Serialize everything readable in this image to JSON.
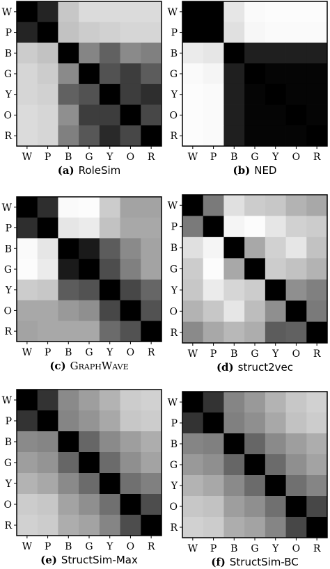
{
  "chart_data": [
    {
      "type": "heatmap",
      "caption_letter": "(a)",
      "caption_text": "RoleSim",
      "xlabels": [
        "W",
        "P",
        "B",
        "G",
        "Y",
        "O",
        "R"
      ],
      "ylabels": [
        "W",
        "P",
        "B",
        "G",
        "Y",
        "O",
        "R"
      ],
      "values": [
        [
          0.0,
          0.14,
          0.78,
          0.86,
          0.86,
          0.86,
          0.86
        ],
        [
          0.14,
          0.0,
          0.76,
          0.8,
          0.82,
          0.84,
          0.84
        ],
        [
          0.8,
          0.76,
          0.0,
          0.52,
          0.38,
          0.54,
          0.5
        ],
        [
          0.84,
          0.8,
          0.54,
          0.0,
          0.32,
          0.24,
          0.36
        ],
        [
          0.84,
          0.82,
          0.38,
          0.32,
          0.0,
          0.24,
          0.18
        ],
        [
          0.86,
          0.84,
          0.56,
          0.24,
          0.24,
          0.0,
          0.28
        ],
        [
          0.86,
          0.84,
          0.5,
          0.34,
          0.16,
          0.28,
          0.0
        ]
      ]
    },
    {
      "type": "heatmap",
      "caption_letter": "(b)",
      "caption_text": "NED",
      "xlabels": [
        "W",
        "P",
        "B",
        "G",
        "Y",
        "O",
        "R"
      ],
      "ylabels": [
        "W",
        "P",
        "B",
        "G",
        "Y",
        "O",
        "R"
      ],
      "values": [
        [
          0.0,
          0.0,
          0.9,
          0.98,
          0.99,
          0.99,
          0.99
        ],
        [
          0.0,
          0.0,
          0.88,
          0.97,
          0.98,
          0.98,
          0.98
        ],
        [
          0.92,
          0.9,
          0.0,
          0.12,
          0.12,
          0.12,
          0.12
        ],
        [
          0.98,
          0.96,
          0.12,
          0.0,
          0.02,
          0.02,
          0.02
        ],
        [
          0.99,
          0.98,
          0.12,
          0.02,
          0.0,
          0.02,
          0.02
        ],
        [
          0.99,
          0.98,
          0.12,
          0.02,
          0.02,
          0.0,
          0.02
        ],
        [
          0.99,
          0.98,
          0.12,
          0.02,
          0.02,
          0.02,
          0.0
        ]
      ]
    },
    {
      "type": "heatmap",
      "caption_letter": "(c)",
      "caption_text": "GraphWave",
      "xlabels": [
        "W",
        "P",
        "B",
        "G",
        "Y",
        "O",
        "R"
      ],
      "ylabels": [
        "W",
        "P",
        "B",
        "G",
        "Y",
        "O",
        "R"
      ],
      "values": [
        [
          0.0,
          0.18,
          0.98,
          0.99,
          0.8,
          0.64,
          0.64
        ],
        [
          0.18,
          0.0,
          0.9,
          0.92,
          0.76,
          0.66,
          0.66
        ],
        [
          0.98,
          0.9,
          0.0,
          0.1,
          0.36,
          0.54,
          0.64
        ],
        [
          0.99,
          0.92,
          0.1,
          0.0,
          0.3,
          0.5,
          0.64
        ],
        [
          0.8,
          0.78,
          0.36,
          0.32,
          0.0,
          0.28,
          0.4
        ],
        [
          0.66,
          0.66,
          0.6,
          0.56,
          0.28,
          0.0,
          0.32
        ],
        [
          0.64,
          0.66,
          0.66,
          0.66,
          0.42,
          0.32,
          0.0
        ]
      ]
    },
    {
      "type": "heatmap",
      "caption_letter": "(d)",
      "caption_text": "struct2vec",
      "xlabels": [
        "W",
        "P",
        "B",
        "G",
        "Y",
        "O",
        "R"
      ],
      "ylabels": [
        "W",
        "P",
        "B",
        "G",
        "Y",
        "O",
        "R"
      ],
      "values": [
        [
          0.0,
          0.48,
          0.88,
          0.8,
          0.78,
          0.7,
          0.66
        ],
        [
          0.48,
          0.0,
          0.96,
          0.99,
          0.9,
          0.82,
          0.8
        ],
        [
          0.88,
          0.96,
          0.0,
          0.66,
          0.82,
          0.9,
          0.76
        ],
        [
          0.8,
          0.99,
          0.66,
          0.0,
          0.8,
          0.76,
          0.7
        ],
        [
          0.78,
          0.92,
          0.84,
          0.8,
          0.0,
          0.56,
          0.5
        ],
        [
          0.7,
          0.78,
          0.9,
          0.74,
          0.56,
          0.0,
          0.48
        ],
        [
          0.54,
          0.66,
          0.72,
          0.68,
          0.36,
          0.38,
          0.0
        ]
      ]
    },
    {
      "type": "heatmap",
      "caption_letter": "(e)",
      "caption_text": "StructSim-Max",
      "xlabels": [
        "W",
        "P",
        "B",
        "G",
        "Y",
        "O",
        "R"
      ],
      "ylabels": [
        "W",
        "P",
        "B",
        "G",
        "Y",
        "O",
        "R"
      ],
      "values": [
        [
          0.0,
          0.2,
          0.54,
          0.62,
          0.7,
          0.8,
          0.82
        ],
        [
          0.2,
          0.0,
          0.52,
          0.58,
          0.66,
          0.78,
          0.8
        ],
        [
          0.54,
          0.52,
          0.0,
          0.4,
          0.54,
          0.62,
          0.68
        ],
        [
          0.62,
          0.58,
          0.4,
          0.0,
          0.42,
          0.56,
          0.64
        ],
        [
          0.7,
          0.66,
          0.54,
          0.42,
          0.0,
          0.44,
          0.5
        ],
        [
          0.8,
          0.78,
          0.64,
          0.56,
          0.44,
          0.0,
          0.3
        ],
        [
          0.82,
          0.8,
          0.68,
          0.64,
          0.52,
          0.3,
          0.0
        ]
      ]
    },
    {
      "type": "heatmap",
      "caption_letter": "(f)",
      "caption_text": "StructSim-BC",
      "xlabels": [
        "W",
        "P",
        "B",
        "G",
        "Y",
        "O",
        "R"
      ],
      "ylabels": [
        "W",
        "P",
        "B",
        "G",
        "Y",
        "O",
        "R"
      ],
      "values": [
        [
          0.0,
          0.2,
          0.52,
          0.6,
          0.7,
          0.78,
          0.82
        ],
        [
          0.2,
          0.0,
          0.5,
          0.56,
          0.66,
          0.76,
          0.8
        ],
        [
          0.52,
          0.5,
          0.0,
          0.4,
          0.54,
          0.62,
          0.68
        ],
        [
          0.6,
          0.56,
          0.4,
          0.0,
          0.42,
          0.56,
          0.64
        ],
        [
          0.7,
          0.66,
          0.54,
          0.42,
          0.0,
          0.44,
          0.52
        ],
        [
          0.78,
          0.76,
          0.62,
          0.56,
          0.44,
          0.0,
          0.28
        ],
        [
          0.82,
          0.8,
          0.68,
          0.64,
          0.52,
          0.28,
          0.0
        ]
      ]
    }
  ]
}
